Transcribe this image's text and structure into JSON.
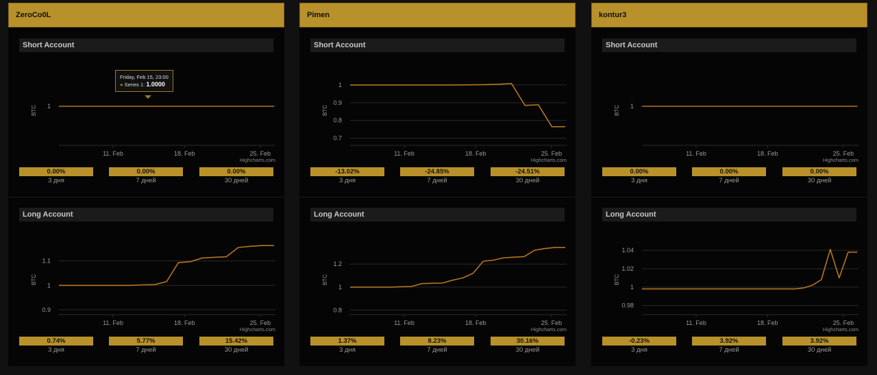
{
  "labels": {
    "short_title": "Short Account",
    "long_title": "Long Account",
    "y_axis": "BTC",
    "credit": "Highcharts.com",
    "periods": [
      "3 дня",
      "7 дней",
      "30 дней"
    ]
  },
  "colors": {
    "accent": "#b8912a",
    "line": "#b8741f",
    "grid": "#2a2a2a"
  },
  "accounts": [
    {
      "name": "ZeroCo0L",
      "short": {
        "stats": [
          "0.00%",
          "0.00%",
          "0.00%"
        ],
        "tooltip": {
          "date": "Friday, Feb 15, 23:00",
          "series": "Series 1",
          "value": "1.0000"
        },
        "chart_data": {
          "type": "line",
          "ylabel": "BTC",
          "ylim": [
            0.9,
            1.1
          ],
          "y_ticks": [
            1
          ],
          "y_tick_labels": [
            "1"
          ],
          "x_ticks": [
            "11. Feb",
            "18. Feb",
            "25. Feb"
          ],
          "grid": true,
          "series": [
            {
              "values": [
                1,
                1,
                1,
                1,
                1,
                1,
                1,
                1,
                1,
                1,
                1,
                1,
                1,
                1,
                1,
                1,
                1
              ]
            }
          ]
        }
      },
      "long": {
        "stats": [
          "0.74%",
          "5.77%",
          "15.42%"
        ],
        "chart_data": {
          "type": "line",
          "ylabel": "BTC",
          "ylim": [
            0.88,
            1.2
          ],
          "y_ticks": [
            0.9,
            1,
            1.1
          ],
          "y_tick_labels": [
            "0.9",
            "1",
            "1.1"
          ],
          "x_ticks": [
            "11. Feb",
            "18. Feb",
            "25. Feb"
          ],
          "grid": true,
          "series": [
            {
              "values": [
                1.0,
                1.0,
                1.0,
                1.0,
                1.0,
                1.0,
                1.0,
                1.002,
                1.003,
                1.015,
                1.093,
                1.097,
                1.112,
                1.115,
                1.117,
                1.155,
                1.16,
                1.163,
                1.163
              ]
            }
          ]
        }
      }
    },
    {
      "name": "Pimen",
      "short": {
        "stats": [
          "-13.02%",
          "-24.85%",
          "-24.51%"
        ],
        "chart_data": {
          "type": "line",
          "ylabel": "BTC",
          "ylim": [
            0.66,
            1.1
          ],
          "y_ticks": [
            0.7,
            0.8,
            0.9,
            1
          ],
          "y_tick_labels": [
            "0.7",
            "0.8",
            "0.9",
            "1"
          ],
          "x_ticks": [
            "11. Feb",
            "18. Feb",
            "25. Feb"
          ],
          "grid": true,
          "series": [
            {
              "values": [
                1,
                1,
                1,
                1,
                1,
                1,
                1,
                1,
                1,
                1.001,
                1.002,
                1.004,
                1.008,
                0.885,
                0.888,
                0.765,
                0.765
              ]
            }
          ]
        }
      },
      "long": {
        "stats": [
          "1.37%",
          "8.23%",
          "30.16%"
        ],
        "chart_data": {
          "type": "line",
          "ylabel": "BTC",
          "ylim": [
            0.76,
            1.44
          ],
          "y_ticks": [
            0.8,
            1,
            1.2
          ],
          "y_tick_labels": [
            "0.8",
            "1",
            "1.2"
          ],
          "x_ticks": [
            "11. Feb",
            "18. Feb",
            "25. Feb"
          ],
          "grid": true,
          "series": [
            {
              "values": [
                1.0,
                1.0,
                1.0,
                1.0,
                1.0,
                1.003,
                1.005,
                1.03,
                1.033,
                1.035,
                1.06,
                1.08,
                1.12,
                1.225,
                1.235,
                1.255,
                1.26,
                1.265,
                1.32,
                1.335,
                1.345,
                1.345
              ]
            }
          ]
        }
      }
    },
    {
      "name": "kontur3",
      "short": {
        "stats": [
          "0.00%",
          "0.00%",
          "0.00%"
        ],
        "chart_data": {
          "type": "line",
          "ylabel": "BTC",
          "ylim": [
            0.9,
            1.1
          ],
          "y_ticks": [
            1
          ],
          "y_tick_labels": [
            "1"
          ],
          "x_ticks": [
            "11. Feb",
            "18. Feb",
            "25. Feb"
          ],
          "grid": true,
          "series": [
            {
              "values": [
                1,
                1,
                1,
                1,
                1,
                1,
                1,
                1,
                1,
                1,
                1,
                1,
                1,
                1,
                1,
                1,
                1
              ]
            }
          ]
        }
      },
      "long": {
        "stats": [
          "-0.23%",
          "3.92%",
          "3.92%"
        ],
        "chart_data": {
          "type": "line",
          "ylabel": "BTC",
          "ylim": [
            0.97,
            1.055
          ],
          "y_ticks": [
            0.98,
            1,
            1.02,
            1.04
          ],
          "y_tick_labels": [
            "0.98",
            "1",
            "1.02",
            "1.04"
          ],
          "x_ticks": [
            "11. Feb",
            "18. Feb",
            "25. Feb"
          ],
          "grid": true,
          "series": [
            {
              "values": [
                0.998,
                0.998,
                0.998,
                0.998,
                0.998,
                0.998,
                0.998,
                0.998,
                0.998,
                0.998,
                0.998,
                0.998,
                0.998,
                0.998,
                0.998,
                0.998,
                0.998,
                0.998,
                0.999,
                1.002,
                1.008,
                1.041,
                1.01,
                1.038,
                1.038
              ]
            }
          ]
        }
      }
    }
  ]
}
